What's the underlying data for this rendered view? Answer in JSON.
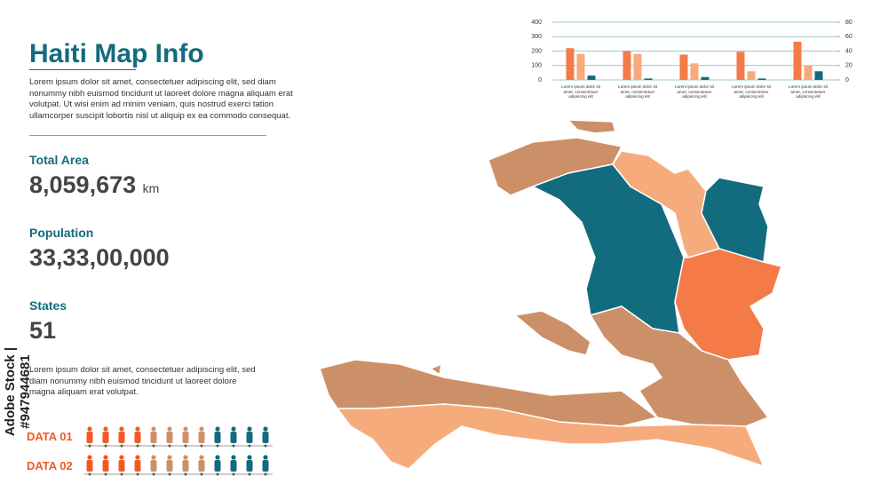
{
  "header": {
    "title": "Haiti Map Info",
    "description": "Lorem ipsum dolor sit amet, consectetuer adipiscing elit, sed diam nonummy nibh euismod tincidunt ut laoreet dolore magna aliquam erat volutpat. Ut wisi enim ad minim veniam, quis nostrud exerci tation ullamcorper suscipit lobortis nisl ut aliquip ex ea commodo consequat."
  },
  "stats": [
    {
      "label": "Total Area",
      "value": "8,059,673",
      "unit": "km"
    },
    {
      "label": "Population",
      "value": "33,33,00,000"
    },
    {
      "label": "States",
      "value": "51"
    }
  ],
  "note": "Lorem ipsum dolor sit amet, consectetuer adipiscing elit, sed diam nonummy nibh euismod tincidunt ut laoreet dolore magna aliquam erat volutpat.",
  "data_rows": [
    "DATA 01",
    "DATA 02"
  ],
  "watermark": "Adobe Stock | #947944681",
  "chart_data": {
    "type": "bar",
    "categories": [
      "Lorem ipsum dolor sit amet, consectetuer adipiscing elit",
      "Lorem ipsum dolor sit amet, consectetuer adipiscing elit",
      "Lorem ipsum dolor sit amet, consectetuer adipiscing elit",
      "Lorem ipsum dolor sit amet, consectetuer adipiscing elit",
      "Lorem ipsum dolor sit amet, consectetuer adipiscing elit"
    ],
    "series": [
      {
        "color": "#f47b48",
        "values": [
          220,
          200,
          175,
          195,
          265
        ]
      },
      {
        "color": "#f6ab7c",
        "values": [
          180,
          180,
          115,
          60,
          100
        ]
      },
      {
        "color": "#136b7e",
        "axis": "y2",
        "values": [
          6,
          2,
          4,
          2,
          12
        ]
      }
    ],
    "ylim": [
      0,
      400
    ],
    "yticks": [
      0,
      100,
      200,
      300,
      400
    ],
    "y2lim": [
      0,
      80
    ],
    "y2ticks": [
      0,
      20,
      40,
      60,
      80
    ],
    "grid": true
  }
}
